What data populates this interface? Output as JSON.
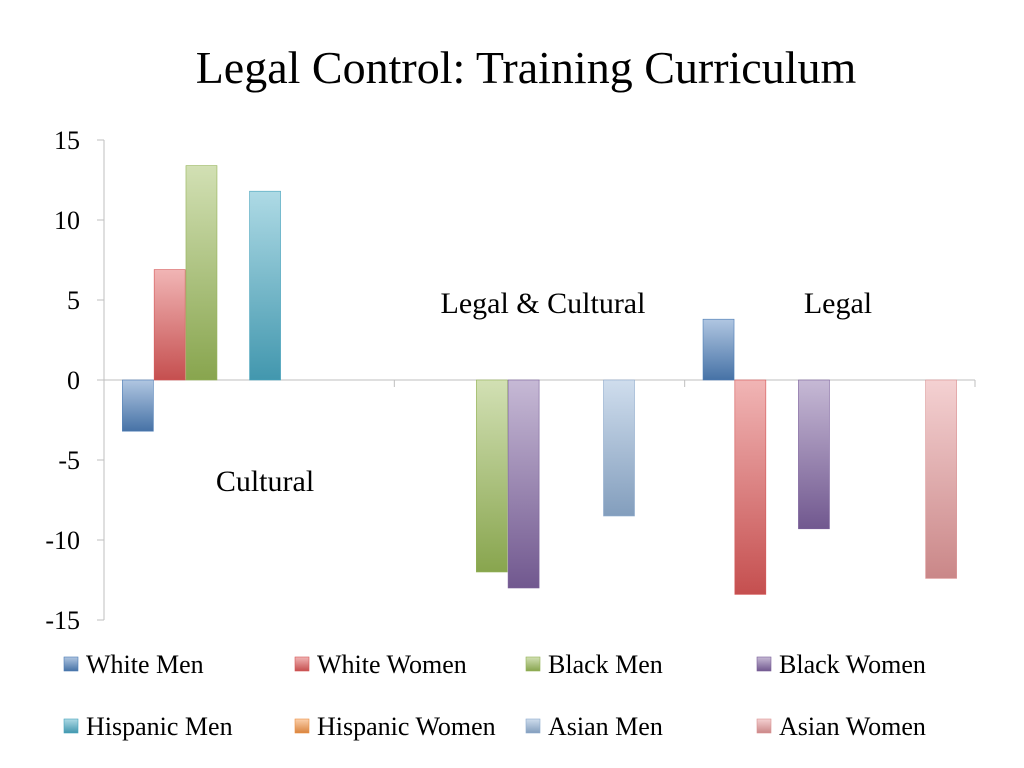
{
  "chart_data": {
    "type": "bar",
    "title": "Legal Control: Training Curriculum",
    "xlabel": "",
    "ylabel": "",
    "ylim": [
      -15,
      15
    ],
    "yticks": [
      15,
      10,
      5,
      0,
      -5,
      -10,
      -15
    ],
    "grid": false,
    "legend_position": "bottom",
    "categories": [
      "Cultural",
      "Legal & Cultural",
      "Legal"
    ],
    "annotations": [
      "Cultural",
      "Legal & Cultural",
      "Legal"
    ],
    "series": [
      {
        "name": "White Men",
        "color": "#4F81BD",
        "values": [
          -3.2,
          0,
          3.8
        ]
      },
      {
        "name": "White Women",
        "color": "#E05A5A",
        "values": [
          6.9,
          0,
          -13.4
        ]
      },
      {
        "name": "Black Men",
        "color": "#9BBB59",
        "values": [
          13.4,
          -12.0,
          0
        ]
      },
      {
        "name": "Black Women",
        "color": "#8064A2",
        "values": [
          0,
          -13.0,
          -9.3
        ]
      },
      {
        "name": "Hispanic Men",
        "color": "#4BACC6",
        "values": [
          11.8,
          0,
          0
        ]
      },
      {
        "name": "Hispanic Women",
        "color": "#F79646",
        "values": [
          0,
          0,
          0
        ]
      },
      {
        "name": "Asian Men",
        "color": "#95B3D7",
        "values": [
          0,
          -8.5,
          0
        ]
      },
      {
        "name": "Asian Women",
        "color": "#E6999A",
        "values": [
          0,
          0,
          -12.4
        ]
      }
    ]
  }
}
